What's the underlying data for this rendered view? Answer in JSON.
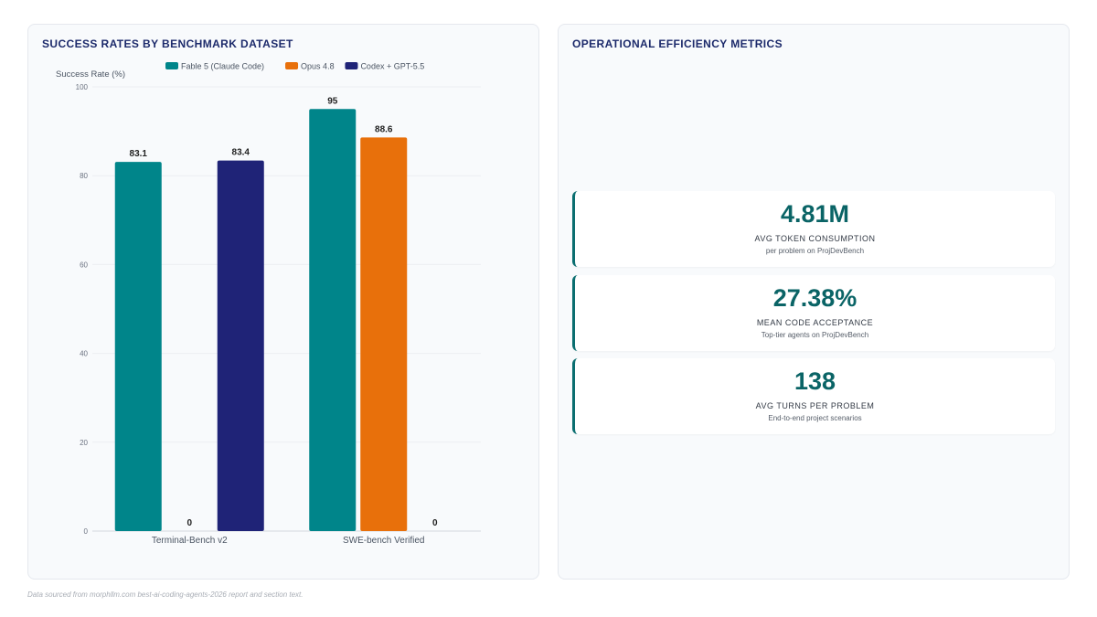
{
  "left_panel": {
    "title": "SUCCESS RATES BY BENCHMARK DATASET"
  },
  "right_panel": {
    "title": "OPERATIONAL EFFICIENCY METRICS"
  },
  "chart_data": {
    "type": "bar",
    "ylabel": "Success Rate (%)",
    "xlabel": "",
    "ylim": [
      0,
      100
    ],
    "yticks": [
      0,
      20,
      40,
      60,
      80,
      100
    ],
    "grid": true,
    "legend_position": "top",
    "categories": [
      "Terminal-Bench v2",
      "SWE-bench Verified"
    ],
    "series": [
      {
        "name": "Fable 5 (Claude Code)",
        "color": "#00858a",
        "values": [
          83.1,
          95
        ]
      },
      {
        "name": "Opus 4.8",
        "color": "#e8700b",
        "values": [
          0,
          88.6
        ]
      },
      {
        "name": "Codex + GPT-5.5",
        "color": "#1f2377",
        "values": [
          83.4,
          0
        ]
      }
    ]
  },
  "metrics": [
    {
      "value": "4.81M",
      "label": "AVG TOKEN CONSUMPTION",
      "sub": "per problem on ProjDevBench"
    },
    {
      "value": "27.38%",
      "label": "MEAN CODE ACCEPTANCE",
      "sub": "Top-tier agents on ProjDevBench"
    },
    {
      "value": "138",
      "label": "AVG TURNS PER PROBLEM",
      "sub": "End-to-end project scenarios"
    }
  ],
  "footnote": "Data sourced from morphllm.com best-ai-coding-agents-2026 report and section text."
}
